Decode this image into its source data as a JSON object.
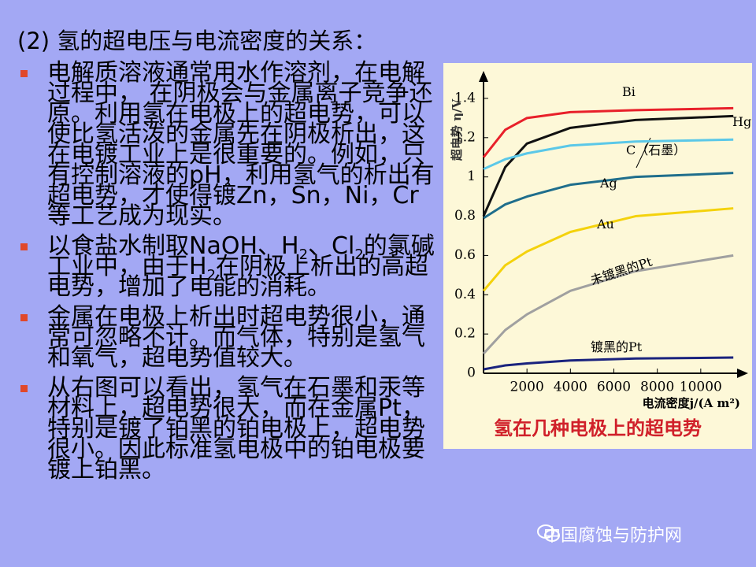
{
  "slide": {
    "title": "(2) 氢的超电压与电流密度的关系：",
    "bullets": [
      {
        "text": "电解质溶液通常用水作溶剂，在电解过程中， 在阴极会与金属离子竞争还原。利用氢在电极上的超电势，可以使比氢活泼的金属先在阴极析出，这在电镀工业上是很重要的。例如，只有控制溶液的pH，利用氢气的析出有超电势，才使得镀Zn，Sn，Ni，Cr等工艺成为现实。"
      },
      {
        "runs": [
          "以食盐水制取NaOH、H",
          "2",
          "、Cl",
          "2",
          "的氯碱工业中，由于H",
          "2",
          "在阴极上析出的高超电势，增加了电能的消耗。"
        ]
      },
      {
        "text": "金属在电极上析出时超电势很小，通常可忽略不计。而气体，特别是氢气和氧气，超电势值较大。"
      },
      {
        "text": "从右图可以看出，氢气在石墨和汞等材料上，超电势很大，而在金属Pt，特别是镀了铂黑的铂电极上，超电势很小。因此标准氢电极中的铂电极要镀上铂黑。"
      }
    ],
    "watermark": "中国腐蚀与防护网",
    "figure": {
      "type": "line",
      "caption": "氢在几种电极上的超电势",
      "y_label": "超电势 η/V",
      "x_label": "电流密度j/(A m²)",
      "xlim": [
        0,
        12000
      ],
      "ylim": [
        0,
        1.5
      ],
      "xticks": [
        2000,
        4000,
        6000,
        8000,
        10000
      ],
      "yticks": [
        0,
        0.2,
        0.4,
        0.6,
        0.8,
        1.0,
        1.2,
        1.4
      ],
      "series": [
        {
          "name": "Bi",
          "color": "#e8202a",
          "x": [
            0,
            1000,
            2000,
            4000,
            7000,
            11500
          ],
          "values": [
            1.1,
            1.24,
            1.3,
            1.33,
            1.34,
            1.35
          ]
        },
        {
          "name": "Hg",
          "color": "#111111",
          "x": [
            0,
            1000,
            2000,
            4000,
            7000,
            11500
          ],
          "values": [
            0.8,
            1.05,
            1.17,
            1.25,
            1.29,
            1.31
          ]
        },
        {
          "name": "C（石墨）",
          "color": "#5bc8e8",
          "x": [
            0,
            1000,
            2000,
            4000,
            7000,
            11500
          ],
          "values": [
            1.04,
            1.09,
            1.12,
            1.16,
            1.18,
            1.19
          ]
        },
        {
          "name": "Ag",
          "color": "#1f6e8c",
          "x": [
            0,
            1000,
            2000,
            4000,
            7000,
            11500
          ],
          "values": [
            0.79,
            0.86,
            0.9,
            0.96,
            1.0,
            1.02
          ]
        },
        {
          "name": "Au",
          "color": "#f4d20c",
          "x": [
            0,
            1000,
            2000,
            4000,
            7000,
            11500
          ],
          "values": [
            0.42,
            0.55,
            0.62,
            0.72,
            0.8,
            0.84
          ]
        },
        {
          "name": "未镀黑的Pt",
          "color": "#a0a0a0",
          "x": [
            0,
            1000,
            2000,
            4000,
            7000,
            11500
          ],
          "values": [
            0.1,
            0.22,
            0.3,
            0.42,
            0.52,
            0.6
          ]
        },
        {
          "name": "镀黑的Pt",
          "color": "#1a237e",
          "x": [
            0,
            1000,
            2000,
            4000,
            7000,
            11500
          ],
          "values": [
            0.02,
            0.04,
            0.05,
            0.065,
            0.075,
            0.08
          ]
        }
      ]
    }
  }
}
